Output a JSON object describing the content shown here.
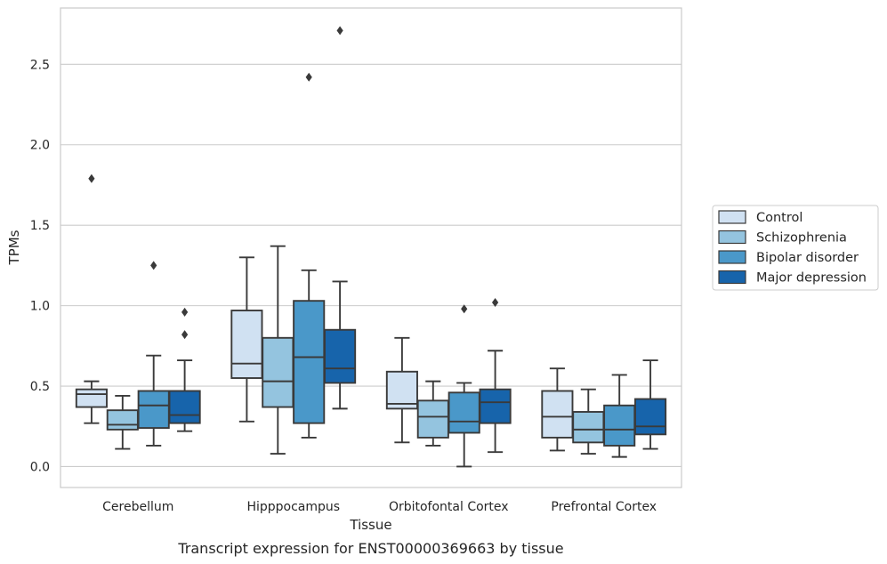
{
  "chart_data": {
    "type": "box",
    "xlabel": "Tissue",
    "ylabel": "TPMs",
    "caption": "Transcript expression for ENST00000369663 by tissue",
    "ylim": [
      -0.13,
      2.85
    ],
    "yticks": [
      0.0,
      0.5,
      1.0,
      1.5,
      2.0,
      2.5
    ],
    "ytick_labels": [
      "0.0",
      "0.5",
      "1.0",
      "1.5",
      "2.0",
      "2.5"
    ],
    "grid": "horizontal",
    "legend_position": "right-center",
    "categories": [
      "Cerebellum",
      "Hipppocampus",
      "Orbitofontal Cortex",
      "Prefrontal Cortex"
    ],
    "series": [
      {
        "name": "Control",
        "color": "#d0e1f2",
        "boxes": [
          {
            "whislo": 0.27,
            "q1": 0.37,
            "med": 0.45,
            "q3": 0.48,
            "whishi": 0.53,
            "fliers": [
              1.79
            ]
          },
          {
            "whislo": 0.28,
            "q1": 0.55,
            "med": 0.64,
            "q3": 0.97,
            "whishi": 1.3,
            "fliers": []
          },
          {
            "whislo": 0.15,
            "q1": 0.36,
            "med": 0.39,
            "q3": 0.59,
            "whishi": 0.8,
            "fliers": []
          },
          {
            "whislo": 0.1,
            "q1": 0.18,
            "med": 0.31,
            "q3": 0.47,
            "whishi": 0.61,
            "fliers": []
          }
        ]
      },
      {
        "name": "Schizophrenia",
        "color": "#94c4df",
        "boxes": [
          {
            "whislo": 0.11,
            "q1": 0.23,
            "med": 0.26,
            "q3": 0.35,
            "whishi": 0.44,
            "fliers": []
          },
          {
            "whislo": 0.08,
            "q1": 0.37,
            "med": 0.53,
            "q3": 0.8,
            "whishi": 1.37,
            "fliers": []
          },
          {
            "whislo": 0.13,
            "q1": 0.18,
            "med": 0.31,
            "q3": 0.41,
            "whishi": 0.53,
            "fliers": []
          },
          {
            "whislo": 0.08,
            "q1": 0.15,
            "med": 0.23,
            "q3": 0.34,
            "whishi": 0.48,
            "fliers": []
          }
        ]
      },
      {
        "name": "Bipolar disorder",
        "color": "#4a98c9",
        "boxes": [
          {
            "whislo": 0.13,
            "q1": 0.24,
            "med": 0.38,
            "q3": 0.47,
            "whishi": 0.69,
            "fliers": [
              1.25
            ]
          },
          {
            "whislo": 0.18,
            "q1": 0.27,
            "med": 0.68,
            "q3": 1.03,
            "whishi": 1.22,
            "fliers": [
              2.42
            ]
          },
          {
            "whislo": 0.0,
            "q1": 0.21,
            "med": 0.28,
            "q3": 0.46,
            "whishi": 0.52,
            "fliers": [
              0.98
            ]
          },
          {
            "whislo": 0.06,
            "q1": 0.13,
            "med": 0.23,
            "q3": 0.38,
            "whishi": 0.57,
            "fliers": []
          }
        ]
      },
      {
        "name": "Major depression",
        "color": "#1764ab",
        "boxes": [
          {
            "whislo": 0.22,
            "q1": 0.27,
            "med": 0.32,
            "q3": 0.47,
            "whishi": 0.66,
            "fliers": [
              0.96,
              0.82
            ]
          },
          {
            "whislo": 0.36,
            "q1": 0.52,
            "med": 0.61,
            "q3": 0.85,
            "whishi": 1.15,
            "fliers": [
              2.71
            ]
          },
          {
            "whislo": 0.09,
            "q1": 0.27,
            "med": 0.4,
            "q3": 0.48,
            "whishi": 0.72,
            "fliers": [
              1.02
            ]
          },
          {
            "whislo": 0.11,
            "q1": 0.2,
            "med": 0.25,
            "q3": 0.42,
            "whishi": 0.66,
            "fliers": []
          }
        ]
      }
    ]
  }
}
